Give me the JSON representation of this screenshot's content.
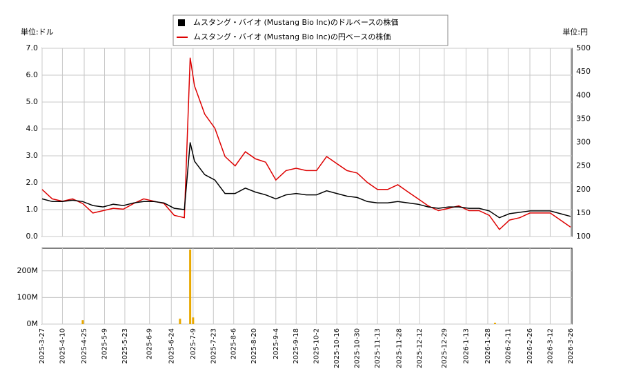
{
  "chart_data": {
    "type": "line",
    "legend": [
      "ムスタング・バイオ (Mustang Bio Inc)のドルベースの株価",
      "ムスタング・バイオ (Mustang Bio Inc)の円ベースの株価"
    ],
    "y_unit_label": "単位:ドル",
    "y2_unit_label": "単位:円",
    "x": [
      "2025-3-27",
      "2025-4-3",
      "2025-4-10",
      "2025-4-17",
      "2025-4-24",
      "2025-5-1",
      "2025-5-8",
      "2025-5-15",
      "2025-5-22",
      "2025-5-29",
      "2025-6-5",
      "2025-6-12",
      "2025-6-19",
      "2025-6-26",
      "2025-7-3",
      "2025-7-7",
      "2025-7-10",
      "2025-7-17",
      "2025-7-24",
      "2025-7-31",
      "2025-8-7",
      "2025-8-14",
      "2025-8-21",
      "2025-8-28",
      "2025-9-4",
      "2025-9-11",
      "2025-9-18",
      "2025-9-25",
      "2025-10-2",
      "2025-10-9",
      "2025-10-16",
      "2025-10-23",
      "2025-10-30",
      "2025-11-6",
      "2025-11-13",
      "2025-11-20",
      "2025-11-27",
      "2025-12-4",
      "2025-12-11",
      "2025-12-18",
      "2025-12-25",
      "2026-1-1",
      "2026-1-8",
      "2026-1-15",
      "2026-1-22",
      "2026-1-29",
      "2026-2-5",
      "2026-2-12",
      "2026-2-19",
      "2026-2-26",
      "2026-3-5",
      "2026-3-12",
      "2026-3-19",
      "2026-3-26"
    ],
    "series": [
      {
        "name": "ドル",
        "color": "#000000",
        "values": [
          1.4,
          1.3,
          1.3,
          1.35,
          1.3,
          1.15,
          1.1,
          1.2,
          1.15,
          1.25,
          1.3,
          1.3,
          1.25,
          1.05,
          1.0,
          3.5,
          2.8,
          2.3,
          2.1,
          1.6,
          1.6,
          1.8,
          1.65,
          1.55,
          1.4,
          1.55,
          1.6,
          1.55,
          1.55,
          1.7,
          1.6,
          1.5,
          1.45,
          1.3,
          1.25,
          1.25,
          1.3,
          1.25,
          1.2,
          1.1,
          1.05,
          1.1,
          1.1,
          1.05,
          1.05,
          0.95,
          0.7,
          0.85,
          0.9,
          0.95,
          0.95,
          0.95,
          0.85,
          0.75
        ]
      },
      {
        "name": "円",
        "color": "#dd0000",
        "axis": "y2",
        "values": [
          200,
          180,
          175,
          180,
          170,
          150,
          155,
          160,
          158,
          170,
          180,
          175,
          170,
          145,
          140,
          480,
          420,
          360,
          330,
          270,
          250,
          280,
          265,
          258,
          220,
          240,
          245,
          240,
          240,
          270,
          255,
          240,
          235,
          215,
          200,
          200,
          210,
          195,
          180,
          165,
          155,
          160,
          165,
          155,
          155,
          145,
          115,
          135,
          140,
          150,
          150,
          150,
          135,
          120
        ]
      }
    ],
    "volume": {
      "color": "#e8a800",
      "x": [
        "2025-4-24",
        "2025-6-30",
        "2025-7-7",
        "2025-7-9",
        "2026-2-2"
      ],
      "values": [
        15000000,
        20000000,
        280000000,
        25000000,
        5000000
      ],
      "ylim": [
        0,
        285000000
      ],
      "yticks": [
        {
          "value": 0,
          "label": "0M"
        },
        {
          "value": 100000000,
          "label": "100M"
        },
        {
          "value": 200000000,
          "label": "200M"
        }
      ]
    },
    "xlim": [
      "2025-3-27",
      "2026-3-27"
    ],
    "xticks": [
      "2025-3-27",
      "2025-4-10",
      "2025-4-25",
      "2025-5-9",
      "2025-5-23",
      "2025-6-9",
      "2025-6-24",
      "2025-7-9",
      "2025-7-23",
      "2025-8-6",
      "2025-8-20",
      "2025-9-4",
      "2025-9-18",
      "2025-10-2",
      "2025-10-16",
      "2025-10-30",
      "2025-11-13",
      "2025-11-28",
      "2025-12-12",
      "2025-12-29",
      "2026-1-13",
      "2026-1-28",
      "2026-2-11",
      "2026-2-26",
      "2026-3-12",
      "2026-3-26"
    ],
    "ylim": [
      0,
      7
    ],
    "yticks": [
      {
        "value": 0,
        "label": "0.0"
      },
      {
        "value": 1,
        "label": "1.0"
      },
      {
        "value": 2,
        "label": "2.0"
      },
      {
        "value": 3,
        "label": "3.0"
      },
      {
        "value": 4,
        "label": "4.0"
      },
      {
        "value": 5,
        "label": "5.0"
      },
      {
        "value": 6,
        "label": "6.0"
      },
      {
        "value": 7,
        "label": "7.0"
      }
    ],
    "y2lim": [
      100,
      500
    ],
    "y2ticks": [
      100,
      150,
      200,
      250,
      300,
      350,
      400,
      450,
      500
    ],
    "grid": true
  }
}
